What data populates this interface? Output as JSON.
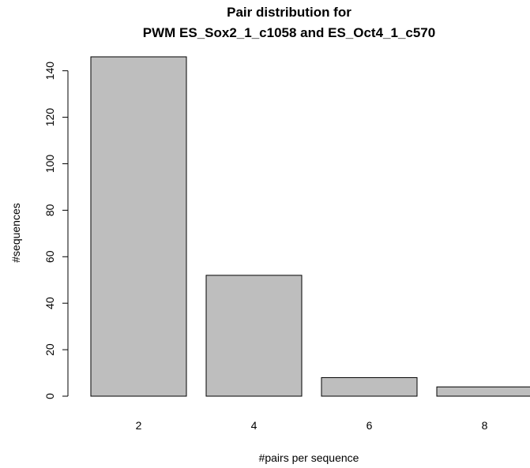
{
  "chart_data": {
    "type": "bar",
    "title": "Pair distribution for",
    "subtitle": "PWM ES_Sox2_1_c1058 and ES_Oct4_1_c570",
    "xlabel": "#pairs per sequence",
    "ylabel": "#sequences",
    "categories": [
      "2",
      "4",
      "6",
      "8"
    ],
    "values": [
      146,
      52,
      8,
      4
    ],
    "yticks": [
      0,
      20,
      40,
      60,
      80,
      100,
      120,
      140
    ],
    "ylim": [
      0,
      146
    ],
    "bar_color": "#bebebe",
    "grid": false,
    "legend": "none"
  }
}
